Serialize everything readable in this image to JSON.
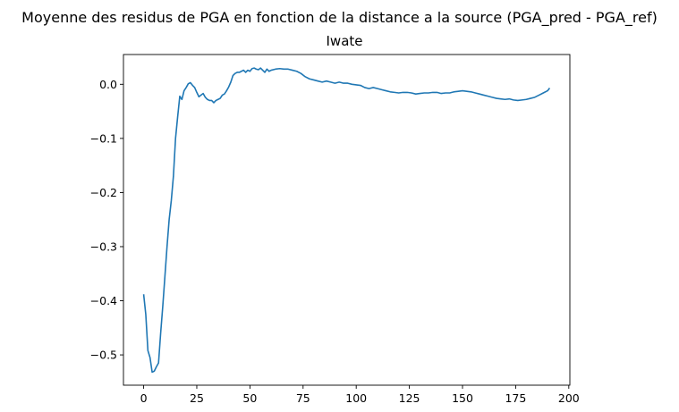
{
  "chart_data": {
    "type": "line",
    "suptitle": "Moyenne des residus de PGA en fonction de la distance a la source (PGA_pred - PGA_ref)",
    "title": "Iwate",
    "xlabel": "",
    "ylabel": "",
    "xlim": [
      -9.5,
      200.5
    ],
    "ylim": [
      -0.556,
      0.055
    ],
    "xticks": [
      0,
      25,
      50,
      75,
      100,
      125,
      150,
      175,
      200
    ],
    "yticks": [
      0.0,
      -0.1,
      -0.2,
      -0.3,
      -0.4,
      -0.5
    ],
    "ytick_labels": [
      "0.0",
      "−0.1",
      "−0.2",
      "−0.3",
      "−0.4",
      "−0.5"
    ],
    "grid": false,
    "color": "#1f77b4",
    "series": [
      {
        "name": "",
        "x": [
          0,
          1,
          2,
          3,
          4,
          5,
          6,
          7,
          8,
          9,
          10,
          11,
          12,
          13,
          14,
          15,
          16,
          17,
          18,
          19,
          20,
          21,
          22,
          23,
          24,
          25,
          26,
          27,
          28,
          29,
          30,
          31,
          32,
          33,
          34,
          35,
          36,
          37,
          38,
          39,
          40,
          41,
          42,
          43,
          44,
          45,
          46,
          47,
          48,
          49,
          50,
          51,
          52,
          53,
          54,
          55,
          56,
          57,
          58,
          59,
          60,
          62,
          64,
          66,
          68,
          70,
          72,
          74,
          76,
          78,
          80,
          82,
          84,
          86,
          88,
          90,
          92,
          94,
          96,
          98,
          100,
          102,
          104,
          106,
          108,
          110,
          112,
          114,
          116,
          118,
          120,
          122,
          124,
          126,
          128,
          130,
          132,
          134,
          136,
          138,
          140,
          142,
          144,
          146,
          148,
          150,
          152,
          154,
          156,
          158,
          160,
          162,
          164,
          166,
          168,
          170,
          172,
          174,
          176,
          178,
          180,
          182,
          184,
          186,
          188,
          190,
          191
        ],
        "y": [
          -0.388,
          -0.425,
          -0.492,
          -0.505,
          -0.532,
          -0.53,
          -0.522,
          -0.515,
          -0.46,
          -0.41,
          -0.355,
          -0.3,
          -0.25,
          -0.215,
          -0.17,
          -0.1,
          -0.06,
          -0.022,
          -0.028,
          -0.012,
          -0.006,
          0.001,
          0.003,
          -0.002,
          -0.006,
          -0.015,
          -0.023,
          -0.02,
          -0.017,
          -0.024,
          -0.028,
          -0.03,
          -0.03,
          -0.034,
          -0.03,
          -0.028,
          -0.026,
          -0.02,
          -0.018,
          -0.012,
          -0.005,
          0.004,
          0.016,
          0.02,
          0.022,
          0.022,
          0.024,
          0.026,
          0.022,
          0.026,
          0.024,
          0.029,
          0.03,
          0.028,
          0.027,
          0.03,
          0.026,
          0.022,
          0.028,
          0.024,
          0.026,
          0.028,
          0.029,
          0.028,
          0.028,
          0.026,
          0.024,
          0.02,
          0.014,
          0.01,
          0.008,
          0.006,
          0.004,
          0.006,
          0.004,
          0.002,
          0.004,
          0.002,
          0.002,
          0.0,
          -0.001,
          -0.002,
          -0.006,
          -0.008,
          -0.006,
          -0.008,
          -0.01,
          -0.012,
          -0.014,
          -0.015,
          -0.016,
          -0.015,
          -0.015,
          -0.016,
          -0.018,
          -0.017,
          -0.016,
          -0.016,
          -0.015,
          -0.015,
          -0.017,
          -0.016,
          -0.016,
          -0.014,
          -0.013,
          -0.012,
          -0.013,
          -0.014,
          -0.016,
          -0.018,
          -0.02,
          -0.022,
          -0.024,
          -0.026,
          -0.027,
          -0.028,
          -0.027,
          -0.029,
          -0.03,
          -0.029,
          -0.028,
          -0.026,
          -0.024,
          -0.02,
          -0.016,
          -0.012,
          -0.007
        ]
      }
    ]
  }
}
